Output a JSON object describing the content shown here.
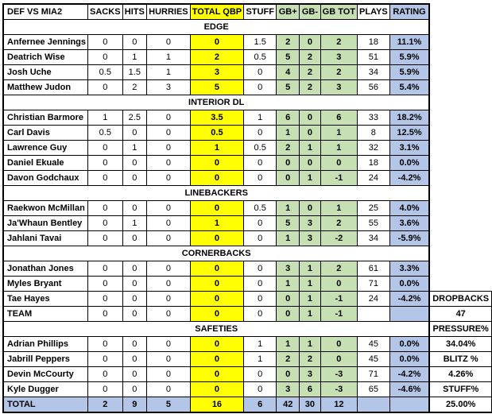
{
  "colors": {
    "qbp_yellow": "#FFFF00",
    "gb_green": "#C6E0B4",
    "rating_blue": "#B4C6E7",
    "border": "#000000",
    "text": "#000000"
  },
  "table": {
    "title": "DEF VS MIA2",
    "columns": [
      "DEF VS MIA2",
      "SACKS",
      "HITS",
      "HURRIES",
      "TOTAL QBP",
      "STUFF",
      "GB+",
      "GB-",
      "GB TOT",
      "PLAYS",
      "RATING"
    ],
    "rows": [
      {
        "type": "section",
        "label": "EDGE"
      },
      {
        "type": "player",
        "name": "Anfernee Jennings",
        "values": [
          "0",
          "0",
          "0",
          "0",
          "1.5",
          "2",
          "0",
          "2",
          "18",
          "11.1%"
        ]
      },
      {
        "type": "player",
        "name": "Deatrich Wise",
        "values": [
          "0",
          "1",
          "1",
          "2",
          "0.5",
          "5",
          "2",
          "3",
          "51",
          "5.9%"
        ]
      },
      {
        "type": "player",
        "name": "Josh Uche",
        "values": [
          "0.5",
          "1.5",
          "1",
          "3",
          "0",
          "4",
          "2",
          "2",
          "34",
          "5.9%"
        ]
      },
      {
        "type": "player",
        "name": "Matthew Judon",
        "values": [
          "0",
          "2",
          "3",
          "5",
          "0",
          "5",
          "2",
          "3",
          "56",
          "5.4%"
        ]
      },
      {
        "type": "section",
        "label": "INTERIOR DL"
      },
      {
        "type": "player",
        "name": "Christian Barmore",
        "values": [
          "1",
          "2.5",
          "0",
          "3.5",
          "1",
          "6",
          "0",
          "6",
          "33",
          "18.2%"
        ]
      },
      {
        "type": "player",
        "name": "Carl Davis",
        "values": [
          "0.5",
          "0",
          "0",
          "0.5",
          "0",
          "1",
          "0",
          "1",
          "8",
          "12.5%"
        ]
      },
      {
        "type": "player",
        "name": "Lawrence Guy",
        "values": [
          "0",
          "1",
          "0",
          "1",
          "0.5",
          "2",
          "1",
          "1",
          "32",
          "3.1%"
        ]
      },
      {
        "type": "player",
        "name": "Daniel Ekuale",
        "values": [
          "0",
          "0",
          "0",
          "0",
          "0",
          "0",
          "0",
          "0",
          "18",
          "0.0%"
        ]
      },
      {
        "type": "player",
        "name": "Davon Godchaux",
        "values": [
          "0",
          "0",
          "0",
          "0",
          "0",
          "0",
          "1",
          "-1",
          "24",
          "-4.2%"
        ]
      },
      {
        "type": "section",
        "label": "LINEBACKERS"
      },
      {
        "type": "player",
        "name": "Raekwon McMillan",
        "values": [
          "0",
          "0",
          "0",
          "0",
          "0.5",
          "1",
          "0",
          "1",
          "25",
          "4.0%"
        ]
      },
      {
        "type": "player",
        "name": "Ja'Whaun Bentley",
        "values": [
          "0",
          "1",
          "0",
          "1",
          "0",
          "5",
          "3",
          "2",
          "55",
          "3.6%"
        ]
      },
      {
        "type": "player",
        "name": "Jahlani Tavai",
        "values": [
          "0",
          "0",
          "0",
          "0",
          "0",
          "1",
          "3",
          "-2",
          "34",
          "-5.9%"
        ]
      },
      {
        "type": "section",
        "label": "CORNERBACKS"
      },
      {
        "type": "player",
        "name": "Jonathan Jones",
        "values": [
          "0",
          "0",
          "0",
          "0",
          "0",
          "3",
          "1",
          "2",
          "61",
          "3.3%"
        ]
      },
      {
        "type": "player",
        "name": "Myles Bryant",
        "values": [
          "0",
          "0",
          "0",
          "0",
          "0",
          "1",
          "1",
          "0",
          "71",
          "0.0%"
        ]
      },
      {
        "type": "player",
        "name": "Tae Hayes",
        "values": [
          "0",
          "0",
          "0",
          "0",
          "0",
          "0",
          "1",
          "-1",
          "24",
          "-4.2%"
        ],
        "side": "DROPBACKS"
      },
      {
        "type": "player",
        "name": "TEAM",
        "values": [
          "0",
          "0",
          "0",
          "0",
          "0",
          "0",
          "1",
          "-1",
          "",
          ""
        ],
        "side": "47"
      },
      {
        "type": "section",
        "label": "SAFETIES",
        "side": "PRESSURE%"
      },
      {
        "type": "player",
        "name": "Adrian Phillips",
        "values": [
          "0",
          "0",
          "0",
          "0",
          "1",
          "1",
          "1",
          "0",
          "45",
          "0.0%"
        ],
        "side": "34.04%"
      },
      {
        "type": "player",
        "name": "Jabrill Peppers",
        "values": [
          "0",
          "0",
          "0",
          "0",
          "1",
          "2",
          "2",
          "0",
          "45",
          "0.0%"
        ],
        "side": "BLITZ %"
      },
      {
        "type": "player",
        "name": "Devin McCourty",
        "values": [
          "0",
          "0",
          "0",
          "0",
          "0",
          "0",
          "3",
          "-3",
          "71",
          "-4.2%"
        ],
        "side": "4.26%"
      },
      {
        "type": "player",
        "name": "Kyle Dugger",
        "values": [
          "0",
          "0",
          "0",
          "0",
          "0",
          "3",
          "6",
          "-3",
          "65",
          "-4.6%"
        ],
        "side": "STUFF%"
      },
      {
        "type": "total",
        "name": "TOTAL",
        "values": [
          "2",
          "9",
          "5",
          "16",
          "6",
          "42",
          "30",
          "12",
          "",
          ""
        ],
        "side": "25.00%"
      }
    ]
  }
}
